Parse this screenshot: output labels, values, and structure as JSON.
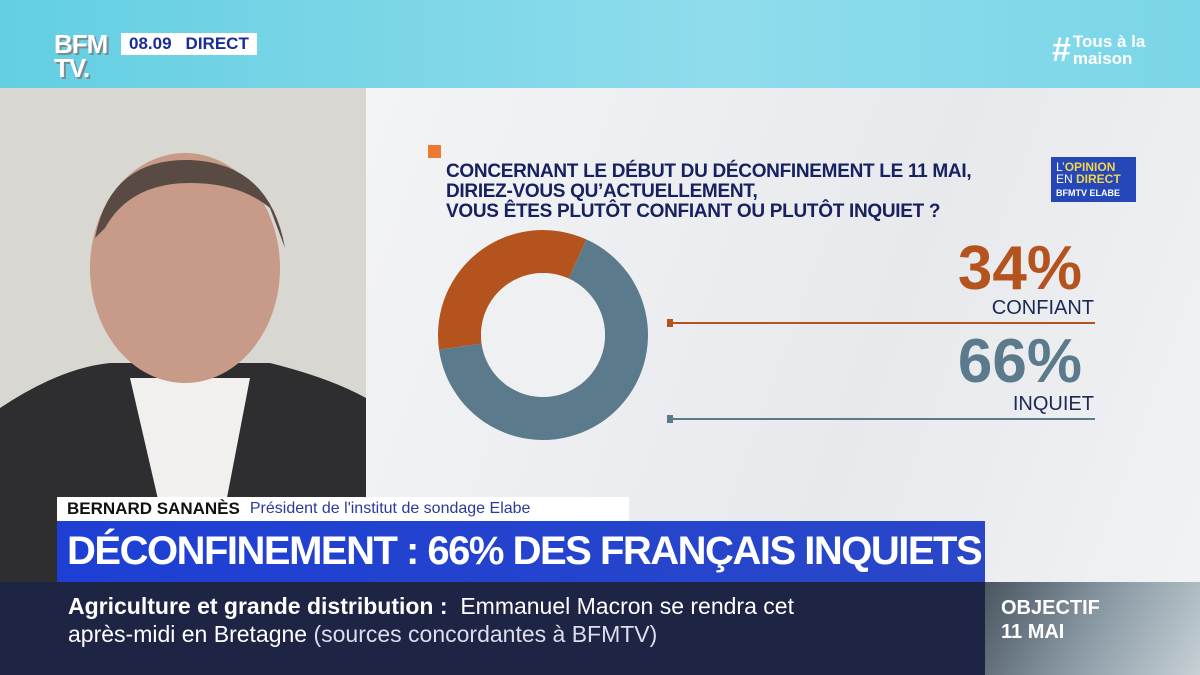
{
  "header": {
    "logo": "BFM TV.",
    "time": "08.09",
    "live": "DIRECT",
    "hashtag_symbol": "#",
    "hashtag_line1": "Tous à la",
    "hashtag_line2": "maison"
  },
  "poll": {
    "question": [
      "CONCERNANT LE DÉBUT DU DÉCONFINEMENT LE 11 MAI,",
      "DIRIEZ-VOUS QU’ACTUELLEMENT,",
      "VOUS ÊTES PLUTÔT CONFIANT OU PLUTÔT INQUIET ?"
    ],
    "badge": {
      "line1_a": "L’",
      "line1_b": "OPINION",
      "line2_a": "EN ",
      "line2_b": "DIRECT",
      "line3": "BFMTV ELABE"
    }
  },
  "chart_data": {
    "type": "pie",
    "donut": true,
    "categories": [
      "CONFIANT",
      "INQUIET"
    ],
    "values": [
      34,
      66
    ],
    "labels": [
      "34%",
      "66%"
    ],
    "colors": [
      "#b5531f",
      "#5b7a8b"
    ]
  },
  "lower_third": {
    "name": "BERNARD SANANÈS",
    "role": "Président de l'institut de sondage Elabe",
    "headline": "DÉCONFINEMENT : 66% DES FRANÇAIS INQUIETS"
  },
  "ticker": {
    "topic": "Agriculture et grande distribution",
    "separator": ":",
    "text": "Emmanuel Macron se rendra cet",
    "text2": "après-midi en Bretagne",
    "source": "(sources concordantes à BFMTV)"
  },
  "promo": {
    "line1": "OBJECTIF",
    "line2": "11 MAI"
  }
}
